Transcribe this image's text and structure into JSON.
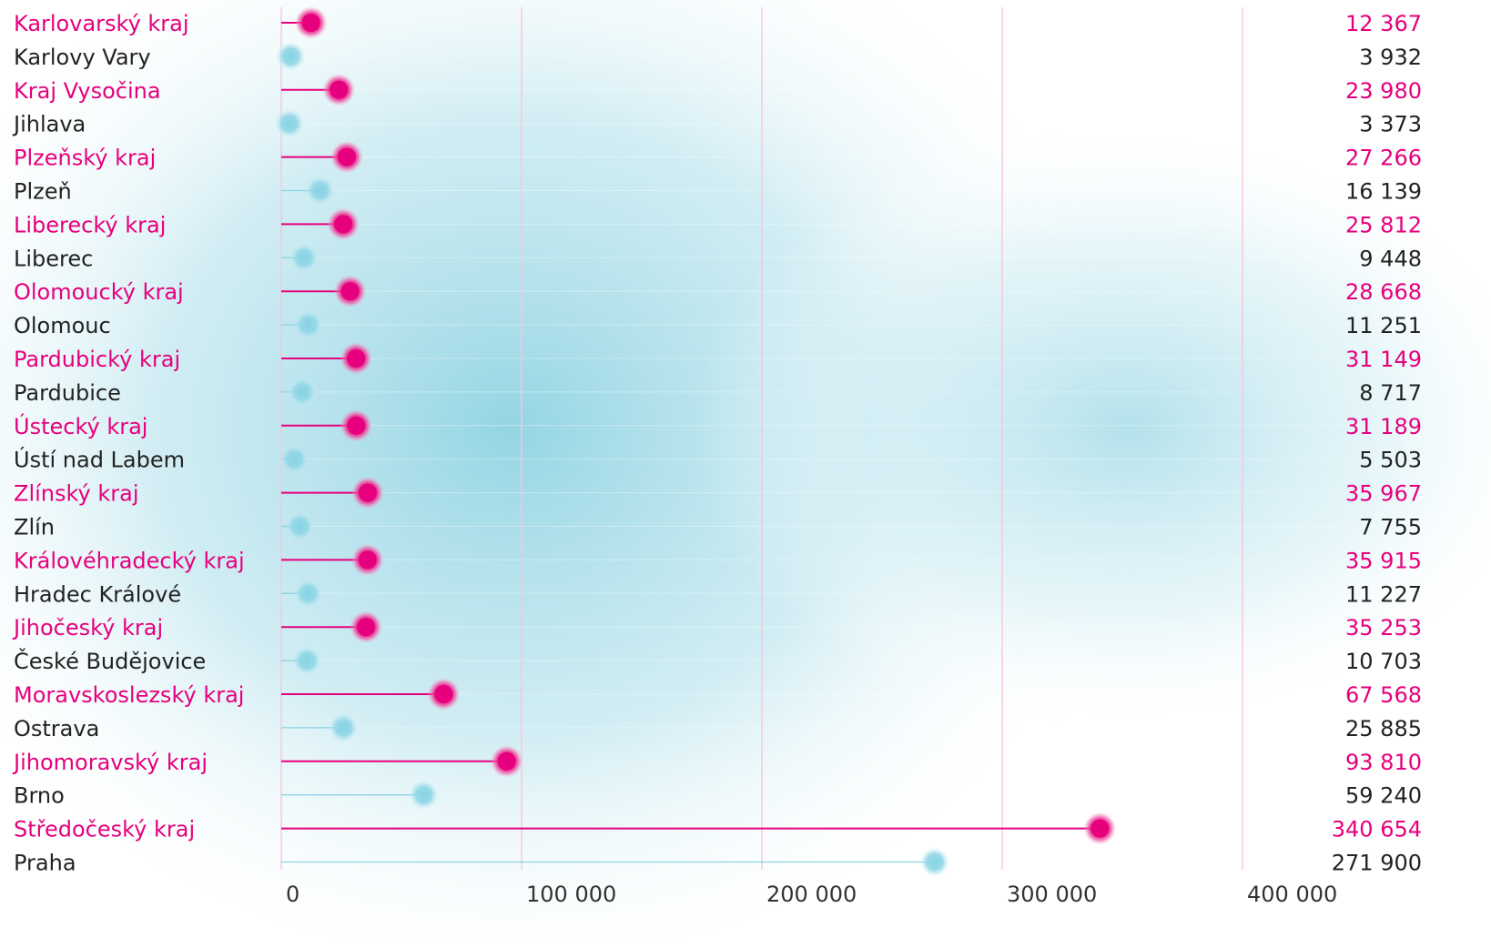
{
  "chart_data": {
    "type": "lollipop",
    "orientation": "horizontal",
    "xlim": [
      0,
      400000
    ],
    "x_ticks": [
      0,
      100000,
      200000,
      300000,
      400000
    ],
    "x_tick_labels": [
      "0",
      "100 000",
      "200 000",
      "300 000",
      "400 000"
    ],
    "grid": "vertical",
    "colors": {
      "region": "#e6007e",
      "city": "#7fcfe0",
      "city_text": "#222222",
      "grid": "#f7c6dc"
    },
    "rows": [
      {
        "label": "Karlovarský kraj",
        "value": 12367,
        "display": "12 367",
        "kind": "region"
      },
      {
        "label": "Karlovy Vary",
        "value": 3932,
        "display": "3 932",
        "kind": "city"
      },
      {
        "label": "Kraj Vysočina",
        "value": 23980,
        "display": "23 980",
        "kind": "region"
      },
      {
        "label": "Jihlava",
        "value": 3373,
        "display": "3 373",
        "kind": "city"
      },
      {
        "label": "Plzeňský kraj",
        "value": 27266,
        "display": "27 266",
        "kind": "region"
      },
      {
        "label": "Plzeň",
        "value": 16139,
        "display": "16 139",
        "kind": "city"
      },
      {
        "label": "Liberecký kraj",
        "value": 25812,
        "display": "25 812",
        "kind": "region"
      },
      {
        "label": "Liberec",
        "value": 9448,
        "display": "9 448",
        "kind": "city"
      },
      {
        "label": "Olomoucký kraj",
        "value": 28668,
        "display": "28 668",
        "kind": "region"
      },
      {
        "label": "Olomouc",
        "value": 11251,
        "display": "11 251",
        "kind": "city"
      },
      {
        "label": "Pardubický kraj",
        "value": 31149,
        "display": "31 149",
        "kind": "region"
      },
      {
        "label": "Pardubice",
        "value": 8717,
        "display": "8 717",
        "kind": "city"
      },
      {
        "label": "Ústecký kraj",
        "value": 31189,
        "display": "31 189",
        "kind": "region"
      },
      {
        "label": "Ústí nad Labem",
        "value": 5503,
        "display": "5 503",
        "kind": "city"
      },
      {
        "label": "Zlínský kraj",
        "value": 35967,
        "display": "35 967",
        "kind": "region"
      },
      {
        "label": "Zlín",
        "value": 7755,
        "display": "7 755",
        "kind": "city"
      },
      {
        "label": "Královéhradecký kraj",
        "value": 35915,
        "display": "35 915",
        "kind": "region"
      },
      {
        "label": "Hradec Králové",
        "value": 11227,
        "display": "11 227",
        "kind": "city"
      },
      {
        "label": "Jihočeský kraj",
        "value": 35253,
        "display": "35 253",
        "kind": "region"
      },
      {
        "label": "České Budějovice",
        "value": 10703,
        "display": "10 703",
        "kind": "city"
      },
      {
        "label": "Moravskoslezský kraj",
        "value": 67568,
        "display": "67 568",
        "kind": "region"
      },
      {
        "label": "Ostrava",
        "value": 25885,
        "display": "25 885",
        "kind": "city"
      },
      {
        "label": "Jihomoravský kraj",
        "value": 93810,
        "display": "93 810",
        "kind": "region"
      },
      {
        "label": "Brno",
        "value": 59240,
        "display": "59 240",
        "kind": "city"
      },
      {
        "label": "Středočeský kraj",
        "value": 340654,
        "display": "340 654",
        "kind": "region"
      },
      {
        "label": "Praha",
        "value": 271900,
        "display": "271 900",
        "kind": "city"
      }
    ]
  }
}
